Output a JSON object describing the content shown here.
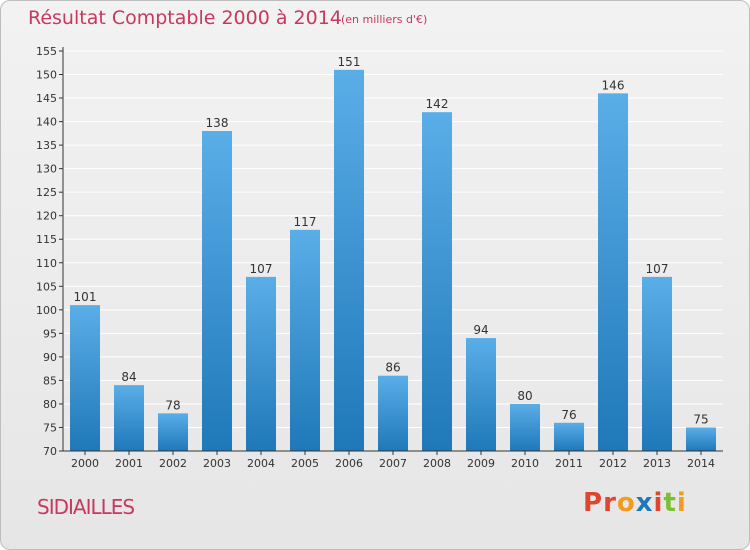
{
  "header": {
    "title": "Résultat Comptable 2000 à 2014",
    "subtitle": "(en milliers d'€)"
  },
  "footer": {
    "commune": "SIDIAILLES",
    "logo": "Proxiti"
  },
  "colors": {
    "title": "#c8385f",
    "bar_top": "#5aaee8",
    "bar_bottom": "#1f78b8",
    "grid": "#ffffff",
    "logo_letters": [
      "#e2452e",
      "#e2452e",
      "#f29b1d",
      "#1f78b8",
      "#e2452e",
      "#7cbf32",
      "#f29b1d"
    ]
  },
  "chart_data": {
    "type": "bar",
    "categories": [
      "2000",
      "2001",
      "2002",
      "2003",
      "2004",
      "2005",
      "2006",
      "2007",
      "2008",
      "2009",
      "2010",
      "2011",
      "2012",
      "2013",
      "2014"
    ],
    "values": [
      101,
      84,
      78,
      138,
      107,
      117,
      151,
      86,
      142,
      94,
      80,
      76,
      146,
      107,
      75
    ],
    "title": "Résultat Comptable 2000 à 2014",
    "subtitle": "(en milliers d'€)",
    "xlabel": "",
    "ylabel": "",
    "ylim": [
      70,
      155
    ],
    "yticks": [
      70,
      75,
      80,
      85,
      90,
      95,
      100,
      105,
      110,
      115,
      120,
      125,
      130,
      135,
      140,
      145,
      150,
      155
    ],
    "grid": true,
    "data_labels": true
  }
}
